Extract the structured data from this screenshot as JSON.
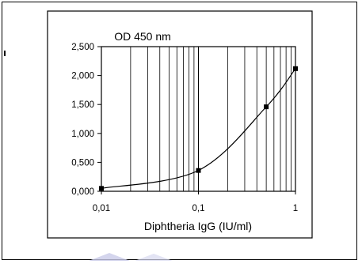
{
  "chart_data": {
    "type": "line",
    "title": "OD 450 nm",
    "xlabel": "Diphtheria IgG (IU/ml)",
    "ylabel": "",
    "x_scale": "log",
    "xlim": [
      0.01,
      1
    ],
    "ylim": [
      0,
      2.5
    ],
    "grid": "x-major-and-minor",
    "x_ticks": [
      "0,01",
      "0,1",
      "1"
    ],
    "y_ticks": [
      "0,000",
      "0,500",
      "1,000",
      "1,500",
      "2,000",
      "2,500"
    ],
    "series": [
      {
        "x": [
          0.01,
          0.1,
          0.5,
          1
        ],
        "y": [
          0.05,
          0.36,
          1.46,
          2.12
        ],
        "line_color": "#000000",
        "marker": "square"
      }
    ]
  }
}
